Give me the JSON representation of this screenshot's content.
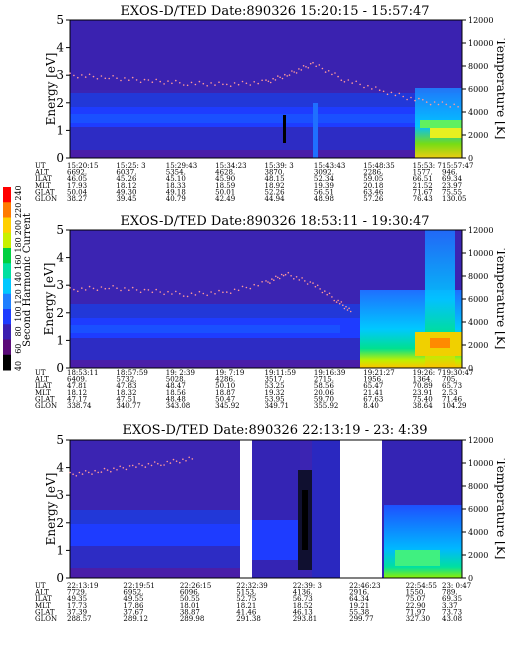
{
  "colorbar": {
    "label": "Second Harmonic Current",
    "ticks": [
      "40",
      "60",
      "80",
      "100",
      "120",
      "140",
      "160",
      "180",
      "200",
      "220",
      "240"
    ],
    "colors": [
      "#000000",
      "#5a0a78",
      "#3a1fb0",
      "#1e3cff",
      "#1f7fff",
      "#00c8ff",
      "#00e0a0",
      "#00d040",
      "#c8f000",
      "#ffd000",
      "#ff7a00",
      "#ff0000"
    ]
  },
  "chart_data": [
    {
      "type": "heatmap",
      "title": "EXOS-D/TED   Date:890326  15:20:15 - 15:57:47",
      "ylabel": "Energy [eV]",
      "ylabel_right": "Temperature [K]",
      "ylim": [
        0,
        5
      ],
      "ylim_right": [
        0,
        12000
      ],
      "yticks": [
        0,
        1,
        2,
        3,
        4,
        5
      ],
      "yticks_right": [
        0,
        2000,
        4000,
        6000,
        8000,
        10000,
        12000
      ],
      "row_labels": [
        "UT",
        "ALT",
        "ILAT",
        "MLT",
        "GLAT",
        "GLON"
      ],
      "columns": [
        [
          "15:20:15",
          "6692.",
          "46.05",
          "17.93",
          "50.04",
          "38.27"
        ],
        [
          "15:25: 3",
          "6037.",
          "45.26",
          "18.12",
          "49.30",
          "39.45"
        ],
        [
          "15:29:43",
          "5354.",
          "45.10",
          "18.33",
          "49.18",
          "40.79"
        ],
        [
          "15:34:23",
          "4628.",
          "45.90",
          "18.59",
          "50.01",
          "42.49"
        ],
        [
          "15:39: 3",
          "3870.",
          "48.15",
          "18.92",
          "52.26",
          "44.94"
        ],
        [
          "15:43:43",
          "3092.",
          "52.34",
          "19.39",
          "56.51",
          "48.98"
        ],
        [
          "15:48:35",
          "2286.",
          "59.05",
          "20.18",
          "63.46",
          "57.26"
        ],
        [
          "15:53: 7",
          "1577.",
          "66.51",
          "21.52",
          "71.67",
          "76.43"
        ],
        [
          "15:57:47",
          "946.",
          "69.34",
          "23.97",
          "75.55",
          "130.05"
        ]
      ],
      "temperature_trace": {
        "x": [
          0,
          0.1,
          0.2,
          0.3,
          0.4,
          0.5,
          0.56,
          0.62,
          0.7,
          0.8,
          0.9,
          1.0
        ],
        "y": [
          7200,
          7000,
          6700,
          6500,
          6400,
          6600,
          7300,
          8200,
          6800,
          5800,
          4900,
          4500
        ]
      }
    },
    {
      "type": "heatmap",
      "title": "EXOS-D/TED   Date:890326  18:53:11 - 19:30:47",
      "ylabel": "Energy [eV]",
      "ylabel_right": "Temperature [K]",
      "ylim": [
        0,
        5
      ],
      "ylim_right": [
        0,
        12000
      ],
      "yticks": [
        0,
        1,
        2,
        3,
        4,
        5
      ],
      "yticks_right": [
        0,
        2000,
        4000,
        6000,
        8000,
        10000,
        12000
      ],
      "row_labels": [
        "UT",
        "ALT",
        "ILAT",
        "MLT",
        "GLAT",
        "GLON"
      ],
      "columns": [
        [
          "18:53:11",
          "6409.",
          "47.81",
          "18.12",
          "47.17",
          "338.74"
        ],
        [
          "18:57:59",
          "5732.",
          "47.83",
          "18.32",
          "47.51",
          "340.77"
        ],
        [
          "19: 2:39",
          "5028.",
          "48.47",
          "18.56",
          "48.48",
          "343.08"
        ],
        [
          "19: 7:19",
          "4286.",
          "50.10",
          "18.87",
          "50.47",
          "345.92"
        ],
        [
          "19:11:59",
          "3517.",
          "53.25",
          "19.32",
          "53.95",
          "349.71"
        ],
        [
          "19:16:39",
          "2715.",
          "58.56",
          "20.06",
          "59.70",
          "355.92"
        ],
        [
          "19:21:27",
          "1956.",
          "65.47",
          "21.41",
          "67.63",
          "8.40"
        ],
        [
          "19:26: 7",
          "1364.",
          "70.89",
          "23.91",
          "75.40",
          "38.64"
        ],
        [
          "19:30:47",
          "705.",
          "65.73",
          "2.53",
          "71.46",
          "104.29"
        ]
      ],
      "temperature_trace": {
        "x": [
          0,
          0.1,
          0.2,
          0.3,
          0.4,
          0.5,
          0.55,
          0.62,
          0.68,
          0.72
        ],
        "y": [
          6800,
          7000,
          6700,
          6400,
          6600,
          7400,
          8200,
          7300,
          5900,
          4800
        ]
      }
    },
    {
      "type": "heatmap",
      "title": "EXOS-D/TED   Date:890326  22:13:19 - 23: 4:39",
      "ylabel": "Energy [eV]",
      "ylabel_right": "Temperature [K]",
      "ylim": [
        0,
        5
      ],
      "ylim_right": [
        0,
        12000
      ],
      "yticks": [
        0,
        1,
        2,
        3,
        4,
        5
      ],
      "yticks_right": [
        0,
        2000,
        4000,
        6000,
        8000,
        10000,
        12000
      ],
      "row_labels": [
        "UT",
        "ALT",
        "ILAT",
        "MLT",
        "GLAT",
        "GLON"
      ],
      "columns": [
        [
          "22:13:19",
          "7729.",
          "49.35",
          "17.73",
          "37.39",
          "288.57"
        ],
        [
          "22:19:51",
          "6952.",
          "49.55",
          "17.86",
          "37.67",
          "289.12"
        ],
        [
          "22:26:15",
          "6096.",
          "50.55",
          "18.01",
          "38.87",
          "289.98"
        ],
        [
          "22:32:39",
          "5153.",
          "52.75",
          "18.21",
          "41.46",
          "291.38"
        ],
        [
          "22:39: 3",
          "4136.",
          "56.73",
          "18.52",
          "46.13",
          "293.81"
        ],
        [
          "22:46:23",
          "2916.",
          "64.34",
          "19.21",
          "55.38",
          "299.77"
        ],
        [
          "22:54:55",
          "1550.",
          "75.07",
          "22.90",
          "71.97",
          "327.30"
        ],
        [
          "23: 0:47",
          "789.",
          "69.35",
          "3.37",
          "73.73",
          "43.08"
        ]
      ],
      "temperature_trace": {
        "x": [
          0,
          0.08,
          0.16,
          0.24,
          0.32
        ],
        "y": [
          9000,
          9300,
          9700,
          10000,
          10400
        ]
      }
    }
  ]
}
